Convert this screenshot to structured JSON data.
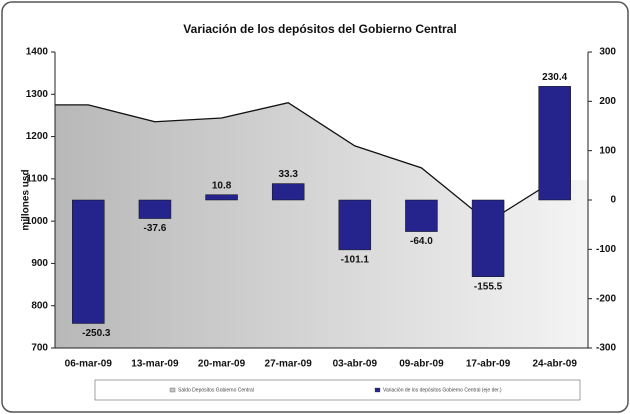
{
  "chart_data": {
    "type": "bar-area",
    "title": "Variación de los depósitos del Gobierno Central",
    "ylabel": "millones usd",
    "categories": [
      "06-mar-09",
      "13-mar-09",
      "20-mar-09",
      "27-mar-09",
      "03-abr-09",
      "09-abr-09",
      "17-abr-09",
      "24-abr-09"
    ],
    "series": [
      {
        "name": "Saldo Depósitos Gobierno Central",
        "type": "area",
        "color": "#c4c4c4",
        "values": [
          1275,
          1235,
          1244,
          1280,
          1178,
          1126,
          998,
          1097
        ]
      },
      {
        "name": "Variación de los depósitos Gobierno Central (eje der.)",
        "type": "bar",
        "axis": "y2",
        "color": "#24248c",
        "values": [
          -250.3,
          -37.6,
          10.8,
          33.3,
          -101.1,
          -64.0,
          -155.5,
          230.4
        ],
        "value_labels": [
          "-250.3",
          "-37.6",
          "10.8",
          "33.3",
          "-101.1",
          "-64.0",
          "-155.5",
          "230.4"
        ]
      }
    ],
    "ylim": [
      700,
      1400
    ],
    "yticks": [
      700,
      800,
      900,
      1000,
      1100,
      1200,
      1300,
      1400
    ],
    "y2lim": [
      -300,
      300
    ],
    "y2ticks": [
      -300,
      -200,
      -100,
      0,
      100,
      200,
      300
    ]
  }
}
